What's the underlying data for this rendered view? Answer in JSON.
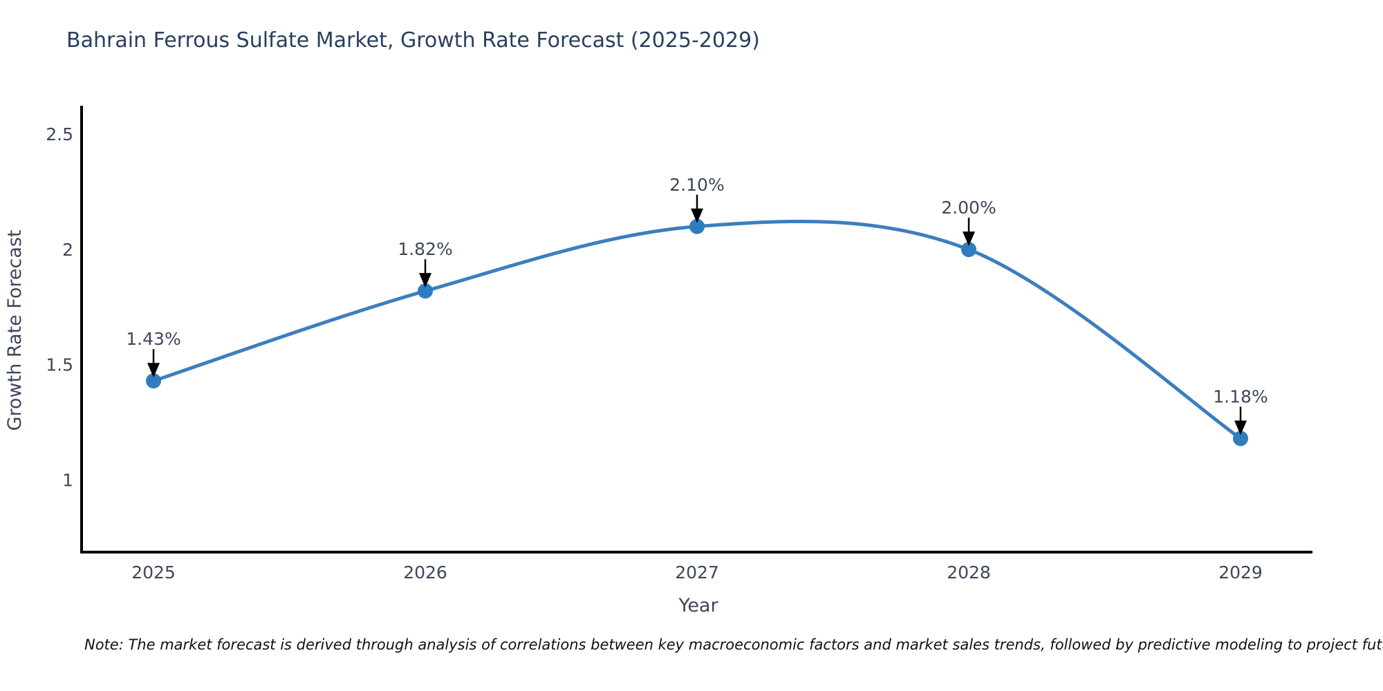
{
  "page": {
    "background": "#ffffff"
  },
  "chart_data": {
    "type": "line",
    "title": "Bahrain Ferrous Sulfate Market, Growth Rate Forecast (2025-2029)",
    "xlabel": "Year",
    "ylabel": "Growth Rate Forecast",
    "categories": [
      "2025",
      "2026",
      "2027",
      "2028",
      "2029"
    ],
    "values": [
      1.43,
      1.82,
      2.1,
      2.0,
      1.18
    ],
    "point_labels": [
      "1.43%",
      "1.82%",
      "2.10%",
      "2.00%",
      "1.18%"
    ],
    "series_name": "Growth Rate Forecast",
    "ytick_values": [
      2.5,
      2.0,
      1.5,
      1.0
    ],
    "ytick_labels": [
      "2.5",
      "2",
      "1.5",
      "1"
    ],
    "ylim": [
      0.687,
      2.618
    ],
    "grid": false,
    "legend_position": "none",
    "line_shape": "spline",
    "markers": true,
    "annotations_arrows": true,
    "note": "Note: The market forecast is derived through analysis of correlations between key macroeconomic factors and market sales trends, followed by predictive modeling to project future sales",
    "colors": {
      "line": "#3d7ebd",
      "marker": "#2e7ebf",
      "axis": "#000000",
      "title_text": "#2a3f5f",
      "tick_text": "#3d4758",
      "annotation_text": "#3d4758",
      "arrow": "#000000",
      "note_text": "#111111"
    }
  }
}
